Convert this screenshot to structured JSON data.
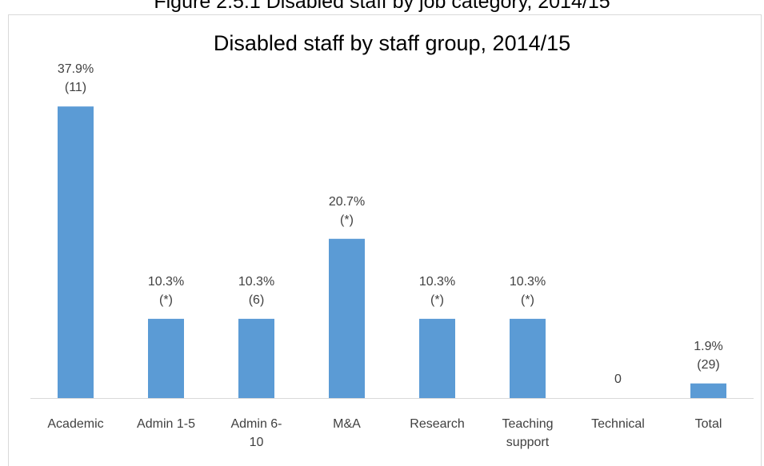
{
  "figure_caption": "Figure 2.5.1 Disabled staff by job category, 2014/15",
  "chart_data": {
    "type": "bar",
    "title": "Disabled staff by staff group, 2014/15",
    "categories": [
      "Academic",
      "Admin 1-5",
      "Admin 6-\n10",
      "M&A",
      "Research",
      "Teaching\nsupport",
      "Technical",
      "Total"
    ],
    "values": [
      37.9,
      10.3,
      10.3,
      20.7,
      10.3,
      10.3,
      0,
      1.9
    ],
    "value_labels": [
      "37.9%",
      "10.3%",
      "10.3%",
      "20.7%",
      "10.3%",
      "10.3%",
      "0",
      "1.9%"
    ],
    "counts": [
      "(11)",
      "(*)",
      "(6)",
      "(*)",
      "(*)",
      "(*)",
      null,
      "(29)"
    ],
    "color": "#5b9bd5",
    "ylim": [
      0,
      40
    ]
  }
}
